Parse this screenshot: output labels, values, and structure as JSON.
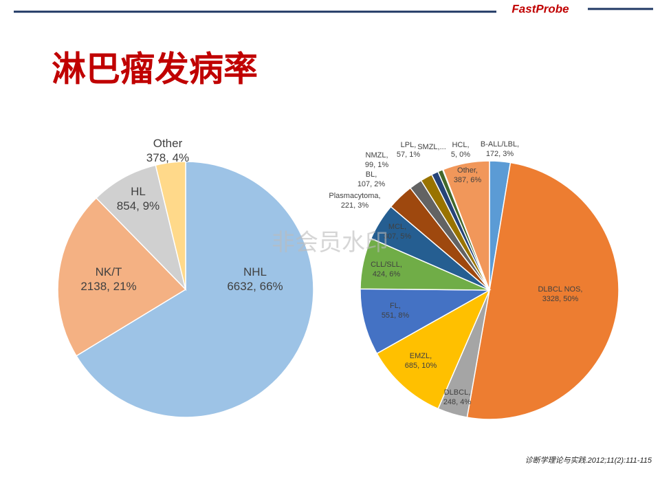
{
  "header": {
    "logo": "FastProbe",
    "title": "淋巴瘤发病率",
    "watermark": "非会员水印"
  },
  "chart_data": [
    {
      "type": "pie",
      "categories": [
        "NHL",
        "NK/T",
        "HL",
        "Other"
      ],
      "values": [
        6632,
        2138,
        854,
        378
      ],
      "value_labels": [
        "6632, 66%",
        "2138, 21%",
        "854, 9%",
        "378, 4%"
      ],
      "colors": [
        "#9dc3e6",
        "#f4b183",
        "#d0d0d0",
        "#ffd98a"
      ]
    },
    {
      "type": "pie",
      "categories": [
        "B-ALL/LBL,",
        "DLBCL NOS,",
        "DLBCL,",
        "EMZL,",
        "FL,",
        "CLL/SLL,",
        "MCL,",
        "Plasmacytoma,",
        "BL,",
        "NMZL,",
        "LPL,",
        "SMZL,",
        "HCL,",
        "Other,"
      ],
      "values": [
        172,
        3328,
        248,
        685,
        551,
        424,
        307,
        221,
        107,
        99,
        57,
        41,
        5,
        387
      ],
      "value_labels": [
        "172, 3%",
        "3328, 50%",
        "248, 4%",
        "685, 10%",
        "551, 8%",
        "424, 6%",
        "307, 5%",
        "221, 3%",
        "107, 2%",
        "99, 1%",
        "57, 1%",
        "...",
        "5, 0%",
        "387, 6%"
      ],
      "colors": [
        "#5b9bd5",
        "#ed7d31",
        "#a5a5a5",
        "#ffc000",
        "#4472c4",
        "#70ad47",
        "#255e91",
        "#9e480e",
        "#636363",
        "#997300",
        "#264478",
        "#43682b",
        "#698ed0",
        "#f1975a"
      ]
    }
  ],
  "citation": "诊断学理论与实践.2012;11(2):111-115"
}
